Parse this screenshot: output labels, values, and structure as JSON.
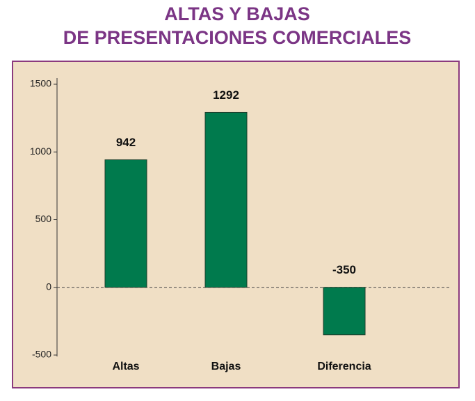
{
  "chart_data": {
    "type": "bar",
    "title": [
      "ALTAS Y BAJAS",
      "DE PRESENTACIONES COMERCIALES"
    ],
    "categories": [
      "Altas",
      "Bajas",
      "Diferencia"
    ],
    "values": [
      942,
      1292,
      -350
    ],
    "color": "#007a4d",
    "ylim": [
      -500,
      1500
    ],
    "yticks": [
      -500,
      0,
      500,
      1000,
      1500
    ],
    "grid": false
  }
}
